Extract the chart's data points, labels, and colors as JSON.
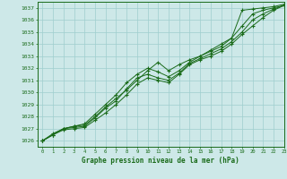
{
  "title": "Graphe pression niveau de la mer (hPa)",
  "bg_color": "#cde8e8",
  "grid_color": "#9ecece",
  "line_color": "#1a6b1a",
  "xlim": [
    -0.5,
    23
  ],
  "ylim": [
    1025.5,
    1037.5
  ],
  "xticks": [
    0,
    1,
    2,
    3,
    4,
    5,
    6,
    7,
    8,
    9,
    10,
    11,
    12,
    13,
    14,
    15,
    16,
    17,
    18,
    19,
    20,
    21,
    22,
    23
  ],
  "yticks": [
    1026,
    1027,
    1028,
    1029,
    1030,
    1031,
    1032,
    1033,
    1034,
    1035,
    1036,
    1037
  ],
  "series": [
    [
      1026.0,
      1026.5,
      1027.0,
      1027.2,
      1027.3,
      1028.0,
      1028.8,
      1029.5,
      1030.2,
      1031.0,
      1031.8,
      1032.5,
      1031.8,
      1032.3,
      1032.7,
      1033.0,
      1033.5,
      1034.0,
      1034.5,
      1036.8,
      1036.9,
      1037.0,
      1037.1,
      1037.3
    ],
    [
      1026.0,
      1026.5,
      1027.0,
      1027.2,
      1027.4,
      1028.2,
      1029.0,
      1029.8,
      1030.8,
      1031.5,
      1032.0,
      1031.7,
      1031.3,
      1031.8,
      1032.5,
      1033.0,
      1033.4,
      1033.8,
      1034.5,
      1035.5,
      1036.5,
      1036.8,
      1037.0,
      1037.2
    ],
    [
      1026.0,
      1026.6,
      1027.0,
      1027.1,
      1027.2,
      1027.9,
      1028.7,
      1029.3,
      1030.3,
      1031.2,
      1031.5,
      1031.2,
      1031.0,
      1031.6,
      1032.4,
      1032.8,
      1033.2,
      1033.6,
      1034.2,
      1035.0,
      1036.0,
      1036.5,
      1036.9,
      1037.2
    ],
    [
      1026.0,
      1026.5,
      1026.9,
      1027.0,
      1027.1,
      1027.7,
      1028.3,
      1029.0,
      1029.8,
      1030.7,
      1031.2,
      1031.0,
      1030.8,
      1031.5,
      1032.3,
      1032.7,
      1033.0,
      1033.4,
      1034.0,
      1034.8,
      1035.5,
      1036.2,
      1036.8,
      1037.2
    ]
  ]
}
